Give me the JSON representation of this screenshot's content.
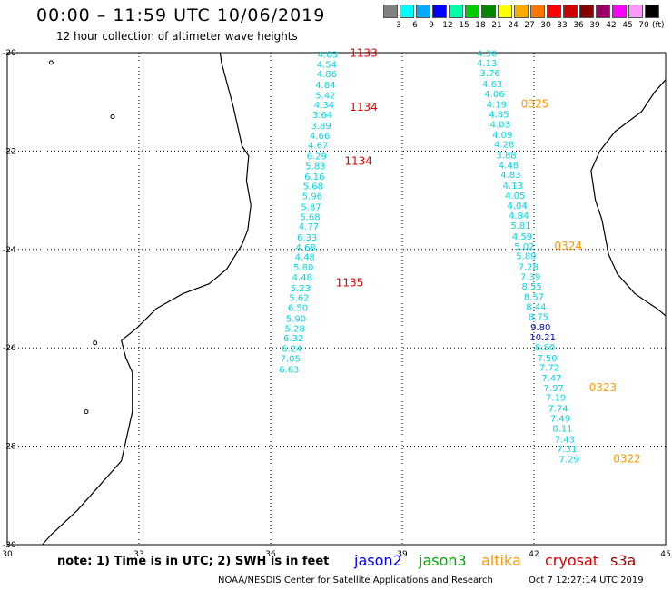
{
  "header": {
    "title": "00:00 – 11:59 UTC 10/06/2019",
    "subtitle": "12 hour collection of altimeter wave heights"
  },
  "color_scale": {
    "colors": [
      "#808080",
      "#00ffff",
      "#00aaff",
      "#0000ff",
      "#00ffaa",
      "#00cc00",
      "#008800",
      "#ffff00",
      "#ffaa00",
      "#ff7700",
      "#ff0000",
      "#cc0000",
      "#880000",
      "#990066",
      "#ff00ff",
      "#ff99ff",
      "#000000"
    ],
    "labels": [
      "3",
      "6",
      "9",
      "12",
      "15",
      "18",
      "21",
      "24",
      "27",
      "30",
      "33",
      "36",
      "39",
      "42",
      "45",
      "70"
    ],
    "unit": "(ft)"
  },
  "map": {
    "lon_min": 30,
    "lon_max": 45,
    "lat_min": -30,
    "lat_max": -20,
    "lon_ticks": [
      "30",
      "33",
      "36",
      "39",
      "42",
      "45"
    ],
    "lat_ticks": [
      "-20",
      "-22",
      "-24",
      "-26",
      "-28",
      "-30"
    ],
    "track_colors": {
      "cyan": "#00d6e6",
      "blue": "#0000cc",
      "red": "#dd0000",
      "orange": "#ff9900"
    },
    "track_left": {
      "values": [
        [
          "4.03",
          -20.1,
          37.3,
          "cyan"
        ],
        [
          "4.54",
          -20.3,
          37.28,
          "cyan"
        ],
        [
          "4.86",
          -20.5,
          37.28,
          "cyan"
        ],
        [
          "4.84",
          -20.72,
          37.25,
          "cyan"
        ],
        [
          "5.42",
          -20.93,
          37.25,
          "cyan"
        ],
        [
          "4.34",
          -21.13,
          37.22,
          "cyan"
        ],
        [
          "3.64",
          -21.33,
          37.18,
          "cyan"
        ],
        [
          "3.89",
          -21.55,
          37.15,
          "cyan"
        ],
        [
          "4.66",
          -21.75,
          37.12,
          "cyan"
        ],
        [
          "4.67",
          -21.95,
          37.08,
          "cyan"
        ],
        [
          "6.29",
          -22.17,
          37.05,
          "cyan"
        ],
        [
          "5.83",
          -22.37,
          37.02,
          "cyan"
        ],
        [
          "6.16",
          -22.58,
          37.0,
          "cyan"
        ],
        [
          "5.68",
          -22.78,
          36.97,
          "cyan"
        ],
        [
          "5.96",
          -22.98,
          36.95,
          "cyan"
        ],
        [
          "5.87",
          -23.2,
          36.92,
          "cyan"
        ],
        [
          "5.68",
          -23.4,
          36.9,
          "cyan"
        ],
        [
          "4.77",
          -23.6,
          36.87,
          "cyan"
        ],
        [
          "6.33",
          -23.82,
          36.83,
          "cyan"
        ],
        [
          "4.68",
          -24.02,
          36.8,
          "cyan"
        ],
        [
          "4.48",
          -24.22,
          36.78,
          "cyan"
        ],
        [
          "5.80",
          -24.43,
          36.75,
          "cyan"
        ],
        [
          "4.48",
          -24.63,
          36.72,
          "cyan"
        ],
        [
          "5.23",
          -24.85,
          36.68,
          "cyan"
        ],
        [
          "5.62",
          -25.05,
          36.65,
          "cyan"
        ],
        [
          "6.50",
          -25.25,
          36.62,
          "cyan"
        ],
        [
          "5.90",
          -25.47,
          36.58,
          "cyan"
        ],
        [
          "5.28",
          -25.67,
          36.55,
          "cyan"
        ],
        [
          "6.32",
          -25.87,
          36.52,
          "cyan"
        ],
        [
          "6.24",
          -26.08,
          36.48,
          "cyan"
        ],
        [
          "7.05",
          -26.28,
          36.45,
          "cyan"
        ],
        [
          "6.63",
          -26.5,
          36.42,
          "cyan"
        ]
      ],
      "times": [
        [
          "1133",
          -20.08,
          38.12,
          "red"
        ],
        [
          "1134",
          -21.18,
          38.12,
          "red"
        ],
        [
          "1134",
          -22.28,
          38.0,
          "red"
        ],
        [
          "1135",
          -24.75,
          37.8,
          "red"
        ]
      ]
    },
    "track_right": {
      "values": [
        [
          "4.30",
          -20.08,
          40.93,
          "cyan"
        ],
        [
          "4.13",
          -20.28,
          40.93,
          "cyan"
        ],
        [
          "3.76",
          -20.48,
          41.0,
          "cyan"
        ],
        [
          "4.63",
          -20.7,
          41.05,
          "cyan"
        ],
        [
          "4.06",
          -20.9,
          41.1,
          "cyan"
        ],
        [
          "4.19",
          -21.12,
          41.15,
          "cyan"
        ],
        [
          "4.85",
          -21.32,
          41.2,
          "cyan"
        ],
        [
          "4.03",
          -21.52,
          41.23,
          "cyan"
        ],
        [
          "4.09",
          -21.73,
          41.28,
          "cyan"
        ],
        [
          "4.28",
          -21.93,
          41.32,
          "cyan"
        ],
        [
          "3.88",
          -22.15,
          41.37,
          "cyan"
        ],
        [
          "4.48",
          -22.35,
          41.42,
          "cyan"
        ],
        [
          "4.83",
          -22.55,
          41.47,
          "cyan"
        ],
        [
          "4.13",
          -22.77,
          41.52,
          "cyan"
        ],
        [
          "4.05",
          -22.97,
          41.57,
          "cyan"
        ],
        [
          "4.04",
          -23.17,
          41.62,
          "cyan"
        ],
        [
          "4.84",
          -23.38,
          41.65,
          "cyan"
        ],
        [
          "5.81",
          -23.58,
          41.7,
          "cyan"
        ],
        [
          "4.59",
          -23.8,
          41.73,
          "cyan"
        ],
        [
          "5.02",
          -24.0,
          41.78,
          "cyan"
        ],
        [
          "5.89",
          -24.2,
          41.82,
          "cyan"
        ],
        [
          "7.28",
          -24.42,
          41.87,
          "cyan"
        ],
        [
          "7.39",
          -24.62,
          41.92,
          "cyan"
        ],
        [
          "8.55",
          -24.82,
          41.95,
          "cyan"
        ],
        [
          "8.57",
          -25.03,
          42.0,
          "cyan"
        ],
        [
          "8.44",
          -25.23,
          42.05,
          "cyan"
        ],
        [
          "8.75",
          -25.43,
          42.1,
          "cyan"
        ],
        [
          "9.80",
          -25.65,
          42.15,
          "blue"
        ],
        [
          "10.21",
          -25.85,
          42.2,
          "blue"
        ],
        [
          "8.80",
          -26.05,
          42.25,
          "cyan"
        ],
        [
          "7.50",
          -26.27,
          42.3,
          "cyan"
        ],
        [
          "7.72",
          -26.47,
          42.35,
          "cyan"
        ],
        [
          "7.47",
          -26.68,
          42.4,
          "cyan"
        ],
        [
          "7.97",
          -26.88,
          42.45,
          "cyan"
        ],
        [
          "7.19",
          -27.08,
          42.5,
          "cyan"
        ],
        [
          "7.74",
          -27.3,
          42.55,
          "cyan"
        ],
        [
          "7.49",
          -27.5,
          42.6,
          "cyan"
        ],
        [
          "8.11",
          -27.7,
          42.65,
          "cyan"
        ],
        [
          "7.43",
          -27.92,
          42.7,
          "cyan"
        ],
        [
          "7.31",
          -28.12,
          42.75,
          "cyan"
        ],
        [
          "7.29",
          -28.33,
          42.8,
          "cyan"
        ]
      ],
      "times": [
        [
          "0325",
          -21.12,
          42.02,
          "orange"
        ],
        [
          "0324",
          -24.0,
          42.78,
          "orange"
        ],
        [
          "0323",
          -26.88,
          43.57,
          "orange"
        ],
        [
          "0322",
          -28.33,
          44.12,
          "orange"
        ]
      ]
    }
  },
  "footer": {
    "note": "note:  1) Time is in UTC;  2) SWH is in feet",
    "satellites": [
      {
        "name": "jason2",
        "color": "#0000ff"
      },
      {
        "name": "jason3",
        "color": "#00aa00"
      },
      {
        "name": "altika",
        "color": "#ff9900"
      },
      {
        "name": "cryosat",
        "color": "#dd0000"
      },
      {
        "name": "s3a",
        "color": "#990000"
      }
    ],
    "credit": "NOAA/NESDIS Center for Satellite Applications and Research",
    "date": "Oct  7 12:27:14 UTC 2019"
  }
}
